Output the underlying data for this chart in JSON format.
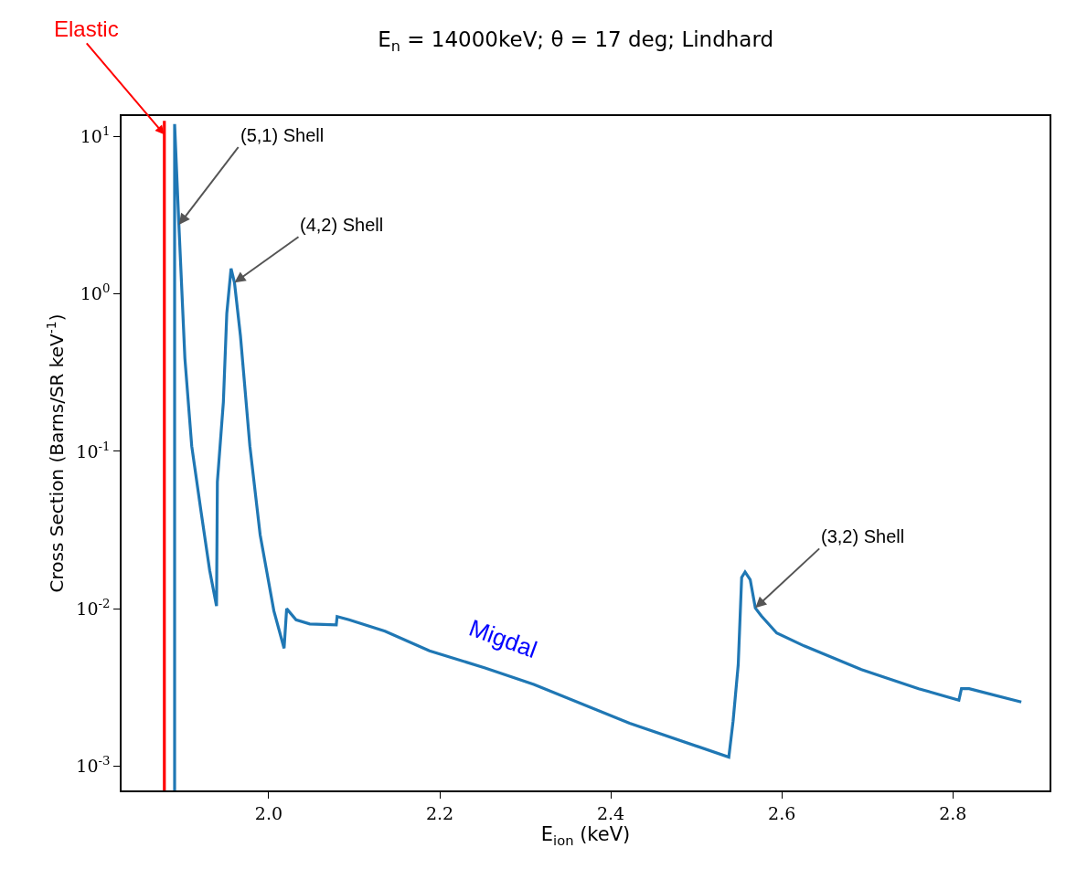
{
  "chart_data": {
    "type": "line",
    "title": "E$_{n}$ = 14000keV; θ = 17 deg; Lindhard",
    "xlabel": "E$_{ion}$ (keV)",
    "ylabel": "Cross Section (Barns/SR keV$^{-1}$)",
    "series": [
      {
        "name": "Elastic",
        "color": "#ff0000",
        "x": [
          1.878,
          1.878
        ],
        "values": [
          0.0007,
          12.6
        ]
      },
      {
        "name": "Migdal",
        "color": "#1f77b4",
        "x": [
          1.89,
          1.89,
          1.895,
          1.902,
          1.91,
          1.921,
          1.931,
          1.939,
          1.94,
          1.947,
          1.951,
          1.956,
          1.96,
          1.967,
          1.978,
          1.99,
          2.006,
          2.018,
          2.021,
          2.032,
          2.048,
          2.079,
          2.08,
          2.094,
          2.136,
          2.188,
          2.253,
          2.31,
          2.422,
          2.538,
          2.543,
          2.549,
          2.553,
          2.557,
          2.563,
          2.569,
          2.576,
          2.594,
          2.626,
          2.693,
          2.76,
          2.807,
          2.81,
          2.819,
          2.88
        ],
        "values": [
          0.0007,
          12,
          2.75,
          0.39,
          0.108,
          0.041,
          0.0175,
          0.0104,
          0.064,
          0.205,
          0.75,
          1.45,
          1.18,
          0.54,
          0.108,
          0.0295,
          0.0097,
          0.0056,
          0.01,
          0.0085,
          0.008,
          0.0079,
          0.0089,
          0.0085,
          0.0072,
          0.0054,
          0.0042,
          0.0033,
          0.00187,
          0.00114,
          0.00193,
          0.0044,
          0.0158,
          0.0171,
          0.0153,
          0.0101,
          0.009,
          0.007,
          0.0058,
          0.0041,
          0.0031,
          0.00262,
          0.0031,
          0.0031,
          0.00255
        ]
      }
    ],
    "annotations": [
      {
        "text": "(5,1) Shell",
        "x": 1.895,
        "y": 2.75
      },
      {
        "text": "(4,2) Shell",
        "x": 1.96,
        "y": 1.18
      },
      {
        "text": "(3,2) Shell",
        "x": 2.569,
        "y": 0.0101
      }
    ],
    "xlim": [
      1.828,
      2.913
    ],
    "xticks": [
      {
        "value": 2.0,
        "label": "2.0"
      },
      {
        "value": 2.2,
        "label": "2.2"
      },
      {
        "value": 2.4,
        "label": "2.4"
      },
      {
        "value": 2.6,
        "label": "2.6"
      },
      {
        "value": 2.8,
        "label": "2.8"
      }
    ],
    "ylim": [
      0.0007,
      13.5
    ],
    "yticks": [
      {
        "value": 0.001,
        "label": "10$^{-3}$"
      },
      {
        "value": 0.01,
        "label": "10$^{-2}$"
      },
      {
        "value": 0.1,
        "label": "10$^{-1}$"
      },
      {
        "value": 1,
        "label": "10$^{0}$"
      },
      {
        "value": 10,
        "label": "10$^{1}$"
      }
    ],
    "log": "y",
    "grid": false,
    "legend": false,
    "line_style": "solid",
    "marker": "none"
  }
}
